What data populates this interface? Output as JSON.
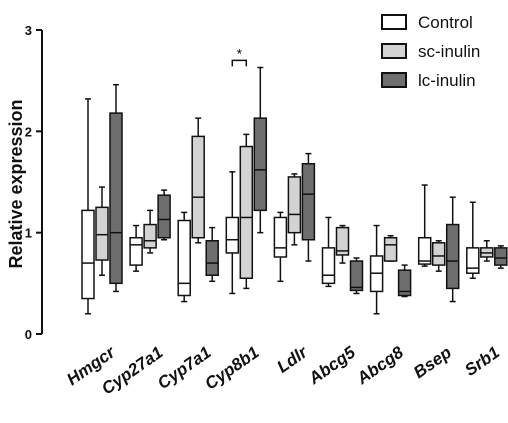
{
  "chart_data": {
    "type": "box",
    "title": "",
    "xlabel": "",
    "ylabel": "Relative expression",
    "ylim": [
      0,
      3
    ],
    "yticks": [
      "0",
      "1",
      "2",
      "3"
    ],
    "categories": [
      "Hmgcr",
      "Cyp27a1",
      "Cyp7a1",
      "Cyp8b1",
      "Ldlr",
      "Abcg5",
      "Abcg8",
      "Bsep",
      "Srb1"
    ],
    "legend_position": "top-right",
    "series": [
      {
        "name": "Control",
        "color": "#ffffff",
        "boxes": [
          {
            "min": 0.2,
            "q1": 0.35,
            "median": 0.7,
            "q3": 1.22,
            "max": 2.32
          },
          {
            "min": 0.62,
            "q1": 0.68,
            "median": 0.88,
            "q3": 0.95,
            "max": 1.07
          },
          {
            "min": 0.32,
            "q1": 0.38,
            "median": 0.5,
            "q3": 1.12,
            "max": 1.2
          },
          {
            "min": 0.4,
            "q1": 0.8,
            "median": 0.93,
            "q3": 1.15,
            "max": 1.6
          },
          {
            "min": 0.52,
            "q1": 0.76,
            "median": 0.85,
            "q3": 1.15,
            "max": 1.2
          },
          {
            "min": 0.47,
            "q1": 0.5,
            "median": 0.58,
            "q3": 0.85,
            "max": 1.15
          },
          {
            "min": 0.2,
            "q1": 0.42,
            "median": 0.6,
            "q3": 0.77,
            "max": 1.07
          },
          {
            "min": 0.67,
            "q1": 0.69,
            "median": 0.72,
            "q3": 0.95,
            "max": 1.47
          },
          {
            "min": 0.55,
            "q1": 0.6,
            "median": 0.65,
            "q3": 0.85,
            "max": 1.3
          }
        ]
      },
      {
        "name": "sc-inulin",
        "color": "#d3d3d3",
        "boxes": [
          {
            "min": 0.58,
            "q1": 0.73,
            "median": 0.98,
            "q3": 1.25,
            "max": 1.45
          },
          {
            "min": 0.8,
            "q1": 0.85,
            "median": 0.92,
            "q3": 1.08,
            "max": 1.22
          },
          {
            "min": 0.9,
            "q1": 0.95,
            "median": 1.35,
            "q3": 1.95,
            "max": 2.13
          },
          {
            "min": 0.45,
            "q1": 0.55,
            "median": 1.15,
            "q3": 1.85,
            "max": 1.97
          },
          {
            "min": 0.88,
            "q1": 1.0,
            "median": 1.18,
            "q3": 1.55,
            "max": 1.58
          },
          {
            "min": 0.7,
            "q1": 0.78,
            "median": 0.82,
            "q3": 1.05,
            "max": 1.07
          },
          {
            "min": 0.72,
            "q1": 0.72,
            "median": 0.88,
            "q3": 0.95,
            "max": 0.97
          },
          {
            "min": 0.62,
            "q1": 0.68,
            "median": 0.77,
            "q3": 0.9,
            "max": 0.92
          },
          {
            "min": 0.72,
            "q1": 0.76,
            "median": 0.8,
            "q3": 0.85,
            "max": 0.92
          }
        ]
      },
      {
        "name": "lc-inulin",
        "color": "#6e6e6e",
        "boxes": [
          {
            "min": 0.42,
            "q1": 0.5,
            "median": 1.0,
            "q3": 2.18,
            "max": 2.46
          },
          {
            "min": 0.93,
            "q1": 0.95,
            "median": 1.13,
            "q3": 1.37,
            "max": 1.42
          },
          {
            "min": 0.52,
            "q1": 0.58,
            "median": 0.7,
            "q3": 0.92,
            "max": 1.05
          },
          {
            "min": 1.0,
            "q1": 1.22,
            "median": 1.62,
            "q3": 2.13,
            "max": 2.63
          },
          {
            "min": 0.72,
            "q1": 0.93,
            "median": 1.38,
            "q3": 1.68,
            "max": 1.78
          },
          {
            "min": 0.4,
            "q1": 0.43,
            "median": 0.46,
            "q3": 0.72,
            "max": 0.75
          },
          {
            "min": 0.37,
            "q1": 0.38,
            "median": 0.42,
            "q3": 0.63,
            "max": 0.68
          },
          {
            "min": 0.32,
            "q1": 0.45,
            "median": 0.72,
            "q3": 1.08,
            "max": 1.35
          },
          {
            "min": 0.65,
            "q1": 0.68,
            "median": 0.75,
            "q3": 0.85,
            "max": 0.87
          }
        ]
      }
    ],
    "annotations": [
      {
        "text": "*",
        "category": "Cyp8b1",
        "from_series": 0,
        "to_series": 1,
        "y": 2.7
      }
    ]
  }
}
